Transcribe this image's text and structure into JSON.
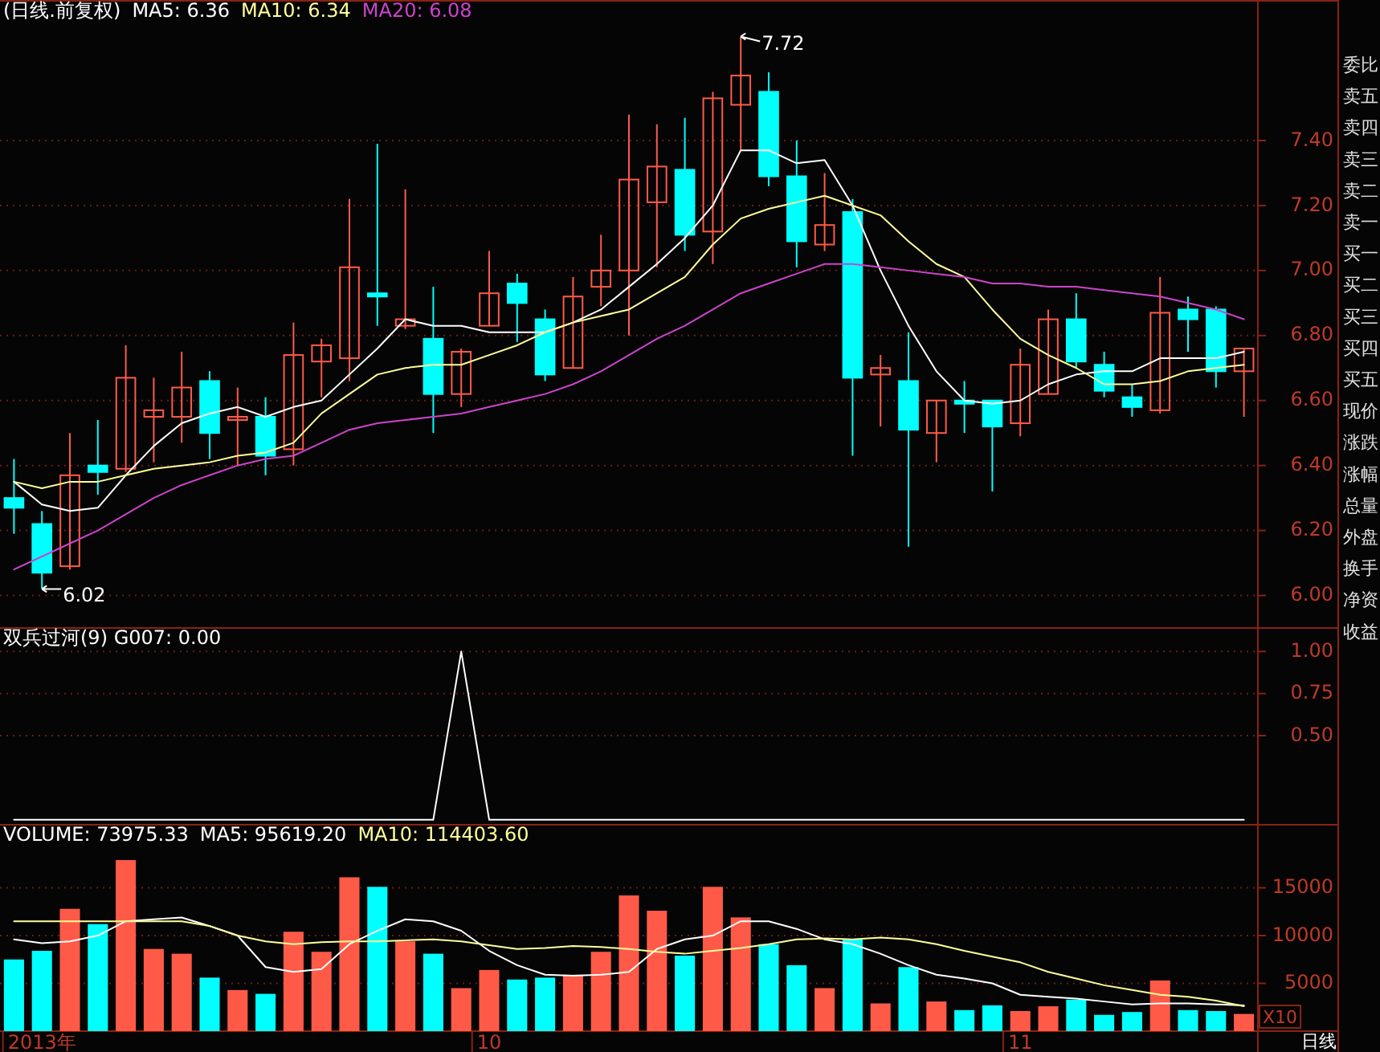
{
  "chart_data": [
    {
      "type": "candlestick",
      "title": "(日线.前复权)",
      "legend": "top left",
      "grid": "y",
      "tick_labels": "y",
      "categories": [
        null,
        null,
        null,
        null,
        null,
        null,
        null,
        null,
        null,
        null,
        null,
        null,
        null,
        null,
        null,
        null,
        null,
        null,
        null,
        null,
        null,
        null,
        null,
        null,
        null,
        null,
        null,
        null,
        null,
        null,
        null,
        null,
        null,
        null,
        null,
        null,
        null,
        null,
        null,
        null,
        null,
        null,
        null,
        null,
        null
      ],
      "ohlc": [
        [
          6.3,
          6.42,
          6.19,
          6.27
        ],
        [
          6.22,
          6.26,
          6.02,
          6.07
        ],
        [
          6.09,
          6.5,
          6.08,
          6.37
        ],
        [
          6.4,
          6.54,
          6.31,
          6.38
        ],
        [
          6.39,
          6.77,
          6.38,
          6.67
        ],
        [
          6.55,
          6.67,
          6.41,
          6.57
        ],
        [
          6.55,
          6.75,
          6.47,
          6.64
        ],
        [
          6.66,
          6.69,
          6.42,
          6.5
        ],
        [
          6.54,
          6.64,
          6.4,
          6.55
        ],
        [
          6.55,
          6.61,
          6.37,
          6.43
        ],
        [
          6.45,
          6.84,
          6.4,
          6.74
        ],
        [
          6.72,
          6.79,
          6.61,
          6.77
        ],
        [
          6.73,
          7.22,
          6.66,
          7.01
        ],
        [
          6.93,
          7.39,
          6.83,
          6.92
        ],
        [
          6.83,
          7.25,
          6.82,
          6.85
        ],
        [
          6.79,
          6.95,
          6.5,
          6.62
        ],
        [
          6.62,
          6.76,
          6.58,
          6.75
        ],
        [
          6.83,
          7.06,
          6.83,
          6.93
        ],
        [
          6.96,
          6.99,
          6.78,
          6.9
        ],
        [
          6.85,
          6.88,
          6.66,
          6.68
        ],
        [
          6.7,
          6.98,
          6.7,
          6.92
        ],
        [
          6.95,
          7.11,
          6.89,
          7.0
        ],
        [
          7.0,
          7.48,
          6.8,
          7.28
        ],
        [
          7.21,
          7.45,
          7.01,
          7.32
        ],
        [
          7.31,
          7.47,
          7.06,
          7.11
        ],
        [
          7.12,
          7.55,
          7.02,
          7.53
        ],
        [
          7.51,
          7.72,
          7.37,
          7.6
        ],
        [
          7.55,
          7.61,
          7.26,
          7.29
        ],
        [
          7.29,
          7.4,
          7.01,
          7.09
        ],
        [
          7.08,
          7.3,
          7.06,
          7.14
        ],
        [
          7.18,
          7.22,
          6.43,
          6.67
        ],
        [
          6.68,
          6.74,
          6.52,
          6.7
        ],
        [
          6.66,
          6.81,
          6.15,
          6.51
        ],
        [
          6.5,
          6.6,
          6.41,
          6.6
        ],
        [
          6.6,
          6.66,
          6.5,
          6.59
        ],
        [
          6.6,
          6.6,
          6.32,
          6.52
        ],
        [
          6.53,
          6.76,
          6.49,
          6.71
        ],
        [
          6.62,
          6.88,
          6.62,
          6.85
        ],
        [
          6.85,
          6.93,
          6.7,
          6.72
        ],
        [
          6.71,
          6.75,
          6.61,
          6.63
        ],
        [
          6.61,
          6.65,
          6.55,
          6.58
        ],
        [
          6.57,
          6.98,
          6.56,
          6.87
        ],
        [
          6.88,
          6.92,
          6.75,
          6.85
        ],
        [
          6.88,
          6.89,
          6.64,
          6.69
        ],
        [
          6.69,
          6.76,
          6.55,
          6.76
        ]
      ],
      "series": [
        {
          "name": "MA5: 6.36",
          "type": "line",
          "color": "#ffffff",
          "values": [
            6.35,
            6.28,
            6.26,
            6.27,
            6.37,
            6.46,
            6.53,
            6.56,
            6.58,
            6.55,
            6.58,
            6.6,
            6.68,
            6.76,
            6.85,
            6.83,
            6.83,
            6.81,
            6.81,
            6.81,
            6.84,
            6.88,
            6.95,
            7.02,
            7.1,
            7.2,
            7.37,
            7.37,
            7.33,
            7.34,
            7.2,
            7.0,
            6.83,
            6.69,
            6.6,
            6.59,
            6.6,
            6.65,
            6.68,
            6.69,
            6.69,
            6.73,
            6.73,
            6.73,
            6.75
          ]
        },
        {
          "name": "MA10: 6.34",
          "type": "line",
          "color": "#ffff99",
          "values": [
            6.35,
            6.33,
            6.35,
            6.35,
            6.37,
            6.39,
            6.4,
            6.41,
            6.43,
            6.44,
            6.47,
            6.56,
            6.62,
            6.68,
            6.7,
            6.71,
            6.71,
            6.74,
            6.77,
            6.81,
            6.84,
            6.86,
            6.88,
            6.93,
            6.98,
            7.08,
            7.16,
            7.19,
            7.21,
            7.23,
            7.2,
            7.17,
            7.09,
            7.02,
            6.98,
            6.88,
            6.79,
            6.74,
            6.7,
            6.65,
            6.65,
            6.66,
            6.69,
            6.7,
            6.71
          ]
        },
        {
          "name": "MA20: 6.08",
          "type": "line",
          "color": "#cc44cc",
          "values": [
            6.08,
            6.12,
            6.16,
            6.2,
            6.25,
            6.3,
            6.34,
            6.37,
            6.4,
            6.42,
            6.43,
            6.47,
            6.51,
            6.53,
            6.54,
            6.55,
            6.56,
            6.58,
            6.6,
            6.62,
            6.65,
            6.69,
            6.74,
            6.79,
            6.83,
            6.88,
            6.93,
            6.96,
            6.99,
            7.02,
            7.02,
            7.01,
            7.0,
            6.99,
            6.98,
            6.96,
            6.96,
            6.95,
            6.95,
            6.94,
            6.93,
            6.92,
            6.9,
            6.88,
            6.85
          ]
        }
      ],
      "ylim": [
        5.9,
        7.83
      ],
      "yticks": [
        {
          "value": 6,
          "label": "6.00"
        },
        {
          "value": 6.2,
          "label": "6.20"
        },
        {
          "value": 6.4,
          "label": "6.40"
        },
        {
          "value": 6.6,
          "label": "6.60"
        },
        {
          "value": 6.8,
          "label": "6.80"
        },
        {
          "value": 7,
          "label": "7.00"
        },
        {
          "value": 7.2,
          "label": "7.20"
        },
        {
          "value": 7.4,
          "label": "7.40"
        }
      ],
      "annotations": [
        "7.72",
        "6.02"
      ]
    },
    {
      "type": "line",
      "title": "双兵过河(9) G007: 0.00",
      "grid": "y",
      "tick_labels": "y",
      "color": "#ffffff",
      "categories": [
        null,
        null,
        null,
        null,
        null,
        null,
        null,
        null,
        null,
        null,
        null,
        null,
        null,
        null,
        null,
        null,
        null,
        null,
        null,
        null,
        null,
        null,
        null,
        null,
        null,
        null,
        null,
        null,
        null,
        null,
        null,
        null,
        null,
        null,
        null,
        null,
        null,
        null,
        null,
        null,
        null,
        null,
        null,
        null,
        null
      ],
      "values": [
        0,
        0,
        0,
        0,
        0,
        0,
        0,
        0,
        0,
        0,
        0,
        0,
        0,
        0,
        0,
        0,
        1,
        0,
        0,
        0,
        0,
        0,
        0,
        0,
        0,
        0,
        0,
        0,
        0,
        0,
        0,
        0,
        0,
        0,
        0,
        0,
        0,
        0,
        0,
        0,
        0,
        0,
        0,
        0,
        0
      ],
      "ylim": [
        -0.03,
        1.14
      ],
      "yticks": [
        {
          "value": 0.5,
          "label": "0.50"
        },
        {
          "value": 0.75,
          "label": "0.75"
        },
        {
          "value": 1,
          "label": "1.00"
        }
      ]
    },
    {
      "type": "bar",
      "title": "VOLUME: 73975.33",
      "legend": "top left",
      "grid": "y",
      "categories": [
        null,
        "2013年",
        null,
        null,
        null,
        null,
        null,
        null,
        null,
        null,
        null,
        null,
        null,
        null,
        null,
        null,
        null,
        "10",
        null,
        null,
        null,
        null,
        null,
        null,
        null,
        null,
        null,
        null,
        null,
        null,
        null,
        null,
        null,
        null,
        null,
        null,
        "11",
        null,
        null,
        null,
        null,
        null,
        null,
        null,
        null
      ],
      "series": [
        {
          "type": "bar",
          "values": [
            7500,
            8400,
            12800,
            11200,
            17900,
            8600,
            8100,
            5600,
            4300,
            3900,
            10400,
            8300,
            16100,
            15100,
            9400,
            8100,
            4500,
            6400,
            5400,
            5600,
            5900,
            8300,
            14200,
            12600,
            7900,
            15100,
            11900,
            9100,
            6900,
            4500,
            9600,
            2900,
            6700,
            3100,
            2200,
            2700,
            2100,
            2600,
            3300,
            1700,
            2000,
            5300,
            2200,
            2100,
            1800
          ],
          "colors": [
            "#00ffff",
            "#00ffff",
            "#ff5a48",
            "#00ffff",
            "#ff5a48",
            "#ff5a48",
            "#ff5a48",
            "#00ffff",
            "#ff5a48",
            "#00ffff",
            "#ff5a48",
            "#ff5a48",
            "#ff5a48",
            "#00ffff",
            "#ff5a48",
            "#00ffff",
            "#ff5a48",
            "#ff5a48",
            "#00ffff",
            "#00ffff",
            "#ff5a48",
            "#ff5a48",
            "#ff5a48",
            "#ff5a48",
            "#00ffff",
            "#ff5a48",
            "#ff5a48",
            "#00ffff",
            "#00ffff",
            "#ff5a48",
            "#00ffff",
            "#ff5a48",
            "#00ffff",
            "#ff5a48",
            "#00ffff",
            "#00ffff",
            "#ff5a48",
            "#ff5a48",
            "#00ffff",
            "#00ffff",
            "#00ffff",
            "#ff5a48",
            "#00ffff",
            "#00ffff",
            "#ff5a48"
          ]
        },
        {
          "name": "MA5: 95619.20",
          "type": "line",
          "color": "#ffffff",
          "values": [
            9600,
            9200,
            9400,
            10000,
            11500,
            11700,
            11900,
            11000,
            10000,
            6700,
            6200,
            6500,
            9100,
            10500,
            11700,
            11500,
            10500,
            8400,
            6900,
            5900,
            5800,
            5900,
            6200,
            8600,
            9600,
            10000,
            11500,
            11500,
            10700,
            9600,
            9100,
            8100,
            6900,
            5900,
            5500,
            5000,
            3800,
            3600,
            3400,
            3100,
            2800,
            2900,
            2900,
            2800,
            2700
          ]
        },
        {
          "name": "MA10: 114403.60",
          "type": "line",
          "color": "#ffff99",
          "values": [
            11500,
            11500,
            11500,
            11500,
            11500,
            11500,
            11500,
            11000,
            10000,
            9400,
            9100,
            9300,
            9400,
            9400,
            9500,
            9600,
            9400,
            9000,
            8600,
            8700,
            8900,
            8800,
            8600,
            8300,
            8100,
            8400,
            8700,
            9100,
            9600,
            9700,
            9600,
            9800,
            9600,
            9100,
            8400,
            7800,
            7200,
            6200,
            5500,
            4800,
            4300,
            3800,
            3600,
            3200,
            2600
          ]
        }
      ],
      "ylim": [
        0,
        21600
      ],
      "yticks": [
        5000,
        10000,
        15000
      ],
      "annotations": [
        "X10",
        "日线"
      ]
    },
    {
      "type": "other",
      "annotations": [
        "委比",
        "卖五",
        "卖四",
        "卖三",
        "卖二",
        "卖一",
        "买一",
        "买二",
        "买三",
        "买四",
        "买五",
        "现价",
        "涨跌",
        "涨幅",
        "总量",
        "外盘",
        "换手",
        "净资",
        "收益"
      ]
    }
  ]
}
